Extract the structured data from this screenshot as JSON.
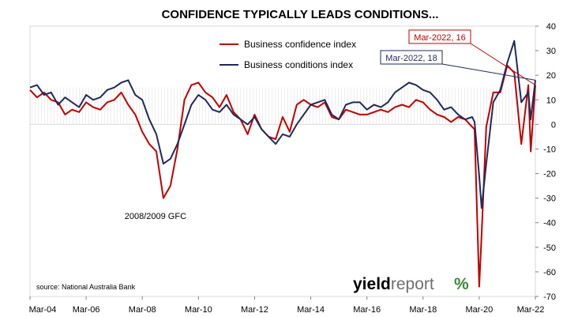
{
  "chart_data": {
    "type": "line",
    "title": "CONFIDENCE TYPICALLY LEADS CONDITIONS...",
    "source": "source: National Australia Bank",
    "logo": "yieldreport %",
    "x_tick_labels": [
      "Mar-04",
      "Mar-06",
      "Mar-08",
      "Mar-10",
      "Mar-12",
      "Mar-14",
      "Mar-16",
      "Mar-18",
      "Mar-20",
      "Mar-22"
    ],
    "y_tick_labels": [
      "40",
      "30",
      "20",
      "10",
      "0",
      "-10",
      "-20",
      "-30",
      "-40",
      "-50",
      "-60",
      "-70"
    ],
    "ylim": [
      -70,
      40
    ],
    "xlim": [
      "2004-03",
      "2022-03"
    ],
    "grid": false,
    "legend_position": "top-center",
    "annotations": [
      {
        "text": "2008/2009 GFC",
        "x": "2008-12",
        "y": -32
      },
      {
        "text": "Mar-2022, 16",
        "series": "Business confidence index",
        "x": "2022-03",
        "y": 16
      },
      {
        "text": "Mar-2022, 18",
        "series": "Business conditions index",
        "x": "2022-03",
        "y": 18
      }
    ],
    "series": [
      {
        "name": "Business confidence index",
        "color": "#c00000",
        "points": [
          [
            "2004-03",
            14
          ],
          [
            "2004-06",
            11
          ],
          [
            "2004-09",
            13
          ],
          [
            "2004-12",
            10
          ],
          [
            "2005-03",
            9
          ],
          [
            "2005-06",
            4
          ],
          [
            "2005-09",
            6
          ],
          [
            "2005-12",
            5
          ],
          [
            "2006-03",
            9
          ],
          [
            "2006-06",
            7
          ],
          [
            "2006-09",
            6
          ],
          [
            "2006-12",
            9
          ],
          [
            "2007-03",
            10
          ],
          [
            "2007-06",
            13
          ],
          [
            "2007-09",
            8
          ],
          [
            "2007-12",
            4
          ],
          [
            "2008-03",
            -3
          ],
          [
            "2008-06",
            -8
          ],
          [
            "2008-09",
            -11
          ],
          [
            "2008-12",
            -30
          ],
          [
            "2009-03",
            -25
          ],
          [
            "2009-06",
            -10
          ],
          [
            "2009-09",
            10
          ],
          [
            "2009-12",
            16
          ],
          [
            "2010-03",
            17
          ],
          [
            "2010-06",
            13
          ],
          [
            "2010-09",
            11
          ],
          [
            "2010-12",
            7
          ],
          [
            "2011-03",
            12
          ],
          [
            "2011-06",
            5
          ],
          [
            "2011-09",
            2
          ],
          [
            "2011-12",
            -4
          ],
          [
            "2012-03",
            4
          ],
          [
            "2012-06",
            -2
          ],
          [
            "2012-09",
            -5
          ],
          [
            "2012-12",
            -6
          ],
          [
            "2013-03",
            3
          ],
          [
            "2013-06",
            -3
          ],
          [
            "2013-09",
            8
          ],
          [
            "2013-12",
            10
          ],
          [
            "2014-03",
            8
          ],
          [
            "2014-06",
            7
          ],
          [
            "2014-09",
            9
          ],
          [
            "2014-12",
            3
          ],
          [
            "2015-03",
            2
          ],
          [
            "2015-06",
            6
          ],
          [
            "2015-09",
            5
          ],
          [
            "2015-12",
            4
          ],
          [
            "2016-03",
            4
          ],
          [
            "2016-06",
            5
          ],
          [
            "2016-09",
            6
          ],
          [
            "2016-12",
            5
          ],
          [
            "2017-03",
            7
          ],
          [
            "2017-06",
            8
          ],
          [
            "2017-09",
            7
          ],
          [
            "2017-12",
            10
          ],
          [
            "2018-03",
            9
          ],
          [
            "2018-06",
            6
          ],
          [
            "2018-09",
            4
          ],
          [
            "2018-12",
            3
          ],
          [
            "2019-03",
            1
          ],
          [
            "2019-06",
            3
          ],
          [
            "2019-09",
            2
          ],
          [
            "2019-12",
            -1
          ],
          [
            "2020-01",
            -2
          ],
          [
            "2020-03",
            -66
          ],
          [
            "2020-04",
            -45
          ],
          [
            "2020-06",
            -1
          ],
          [
            "2020-09",
            13
          ],
          [
            "2020-12",
            13
          ],
          [
            "2021-03",
            24
          ],
          [
            "2021-06",
            21
          ],
          [
            "2021-09",
            -8
          ],
          [
            "2021-12",
            16
          ],
          [
            "2022-01",
            -11
          ],
          [
            "2022-03",
            16
          ]
        ]
      },
      {
        "name": "Business conditions index",
        "color": "#1f2a5c",
        "points": [
          [
            "2004-03",
            15
          ],
          [
            "2004-06",
            16
          ],
          [
            "2004-09",
            12
          ],
          [
            "2004-12",
            13
          ],
          [
            "2005-03",
            8
          ],
          [
            "2005-06",
            11
          ],
          [
            "2005-09",
            9
          ],
          [
            "2005-12",
            7
          ],
          [
            "2006-03",
            12
          ],
          [
            "2006-06",
            10
          ],
          [
            "2006-09",
            11
          ],
          [
            "2006-12",
            14
          ],
          [
            "2007-03",
            15
          ],
          [
            "2007-06",
            17
          ],
          [
            "2007-09",
            18
          ],
          [
            "2007-12",
            12
          ],
          [
            "2008-03",
            10
          ],
          [
            "2008-06",
            2
          ],
          [
            "2008-09",
            -4
          ],
          [
            "2008-12",
            -16
          ],
          [
            "2009-03",
            -14
          ],
          [
            "2009-06",
            -8
          ],
          [
            "2009-09",
            0
          ],
          [
            "2009-12",
            8
          ],
          [
            "2010-03",
            12
          ],
          [
            "2010-06",
            10
          ],
          [
            "2010-09",
            6
          ],
          [
            "2010-12",
            5
          ],
          [
            "2011-03",
            8
          ],
          [
            "2011-06",
            4
          ],
          [
            "2011-09",
            2
          ],
          [
            "2011-12",
            0
          ],
          [
            "2012-03",
            3
          ],
          [
            "2012-06",
            -2
          ],
          [
            "2012-09",
            -5
          ],
          [
            "2012-12",
            -8
          ],
          [
            "2013-03",
            -4
          ],
          [
            "2013-06",
            -5
          ],
          [
            "2013-09",
            0
          ],
          [
            "2013-12",
            4
          ],
          [
            "2014-03",
            8
          ],
          [
            "2014-06",
            9
          ],
          [
            "2014-09",
            10
          ],
          [
            "2014-12",
            4
          ],
          [
            "2015-03",
            2
          ],
          [
            "2015-06",
            8
          ],
          [
            "2015-09",
            9
          ],
          [
            "2015-12",
            9
          ],
          [
            "2016-03",
            6
          ],
          [
            "2016-06",
            8
          ],
          [
            "2016-09",
            7
          ],
          [
            "2016-12",
            9
          ],
          [
            "2017-03",
            13
          ],
          [
            "2017-06",
            15
          ],
          [
            "2017-09",
            17
          ],
          [
            "2017-12",
            16
          ],
          [
            "2018-03",
            14
          ],
          [
            "2018-06",
            13
          ],
          [
            "2018-09",
            10
          ],
          [
            "2018-12",
            6
          ],
          [
            "2019-03",
            7
          ],
          [
            "2019-06",
            4
          ],
          [
            "2019-09",
            2
          ],
          [
            "2019-12",
            3
          ],
          [
            "2020-01",
            1
          ],
          [
            "2020-03",
            -21
          ],
          [
            "2020-04",
            -34
          ],
          [
            "2020-06",
            -16
          ],
          [
            "2020-09",
            9
          ],
          [
            "2020-12",
            14
          ],
          [
            "2021-03",
            25
          ],
          [
            "2021-06",
            34
          ],
          [
            "2021-09",
            9
          ],
          [
            "2021-12",
            13
          ],
          [
            "2022-01",
            2
          ],
          [
            "2022-03",
            18
          ]
        ]
      }
    ]
  }
}
